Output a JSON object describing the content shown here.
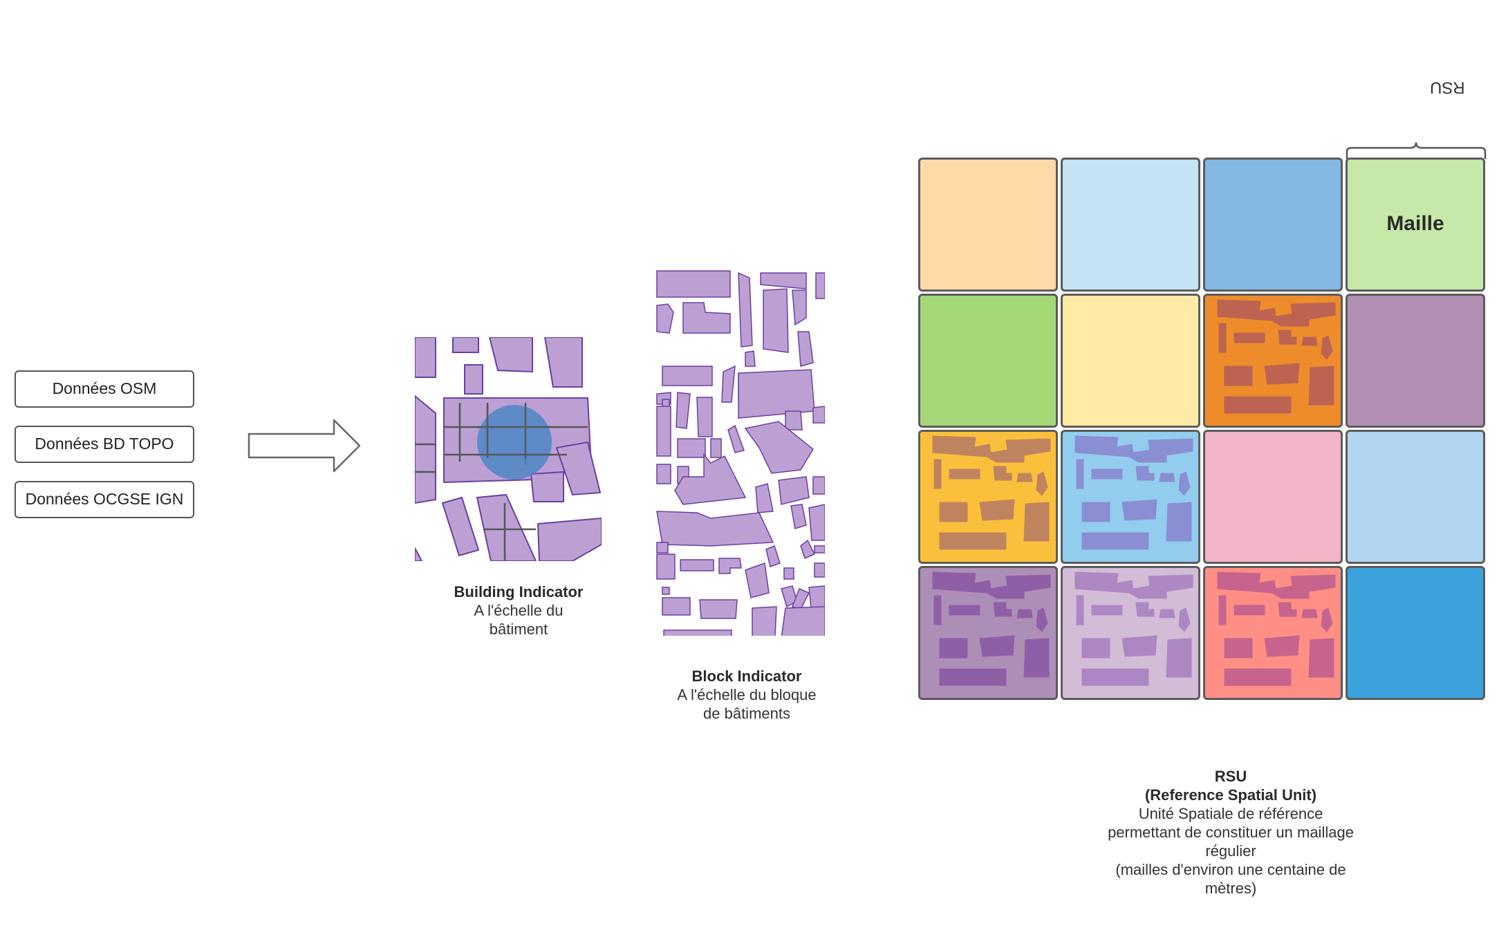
{
  "sources": [
    "Données OSM",
    "Données BD TOPO",
    "Données OCGSE IGN"
  ],
  "building": {
    "title": "Building Indicator",
    "line1": "A l'échelle du",
    "line2": "bâtiment"
  },
  "block": {
    "title": "Block Indicator",
    "line1": "A l'échelle du bloque",
    "line2": "de bâtiments"
  },
  "rsu": {
    "brace_label": "RSU",
    "cell_label": "Maille",
    "title": "RSU",
    "subtitle": "(Reference Spatial Unit)",
    "desc1": "Unité Spatiale de référence",
    "desc2": "permettant de constituer un maillage",
    "desc3": "régulier",
    "desc4": "(mailles d'environ une centaine de",
    "desc5": "mètres)"
  },
  "colors": {
    "building_fill": "#bca0d4",
    "building_stroke": "#6a3fa0",
    "highlight_circle": "#4f86c6",
    "grid": [
      [
        "#ffd9a8",
        "#c4e3f5",
        "#84b9e3",
        "#c6e8a8"
      ],
      [
        "#a4d877",
        "#ffeaa6",
        "#ee8c2c",
        "#b190b4"
      ],
      [
        "#fbc03b",
        "#92cdee",
        "#f3b5c8",
        "#b3d5ef"
      ],
      [
        "#ad8eb6",
        "#d2bcd6",
        "#ff8f85",
        "#3ba2dd"
      ]
    ],
    "grid_overlay": {
      "1_2": "#b75f56",
      "2_0": "#b97e64",
      "2_1": "#8a88d0",
      "3_0": "#8b5aa6",
      "3_1": "#a982c1",
      "3_2": "#c0608e"
    }
  }
}
